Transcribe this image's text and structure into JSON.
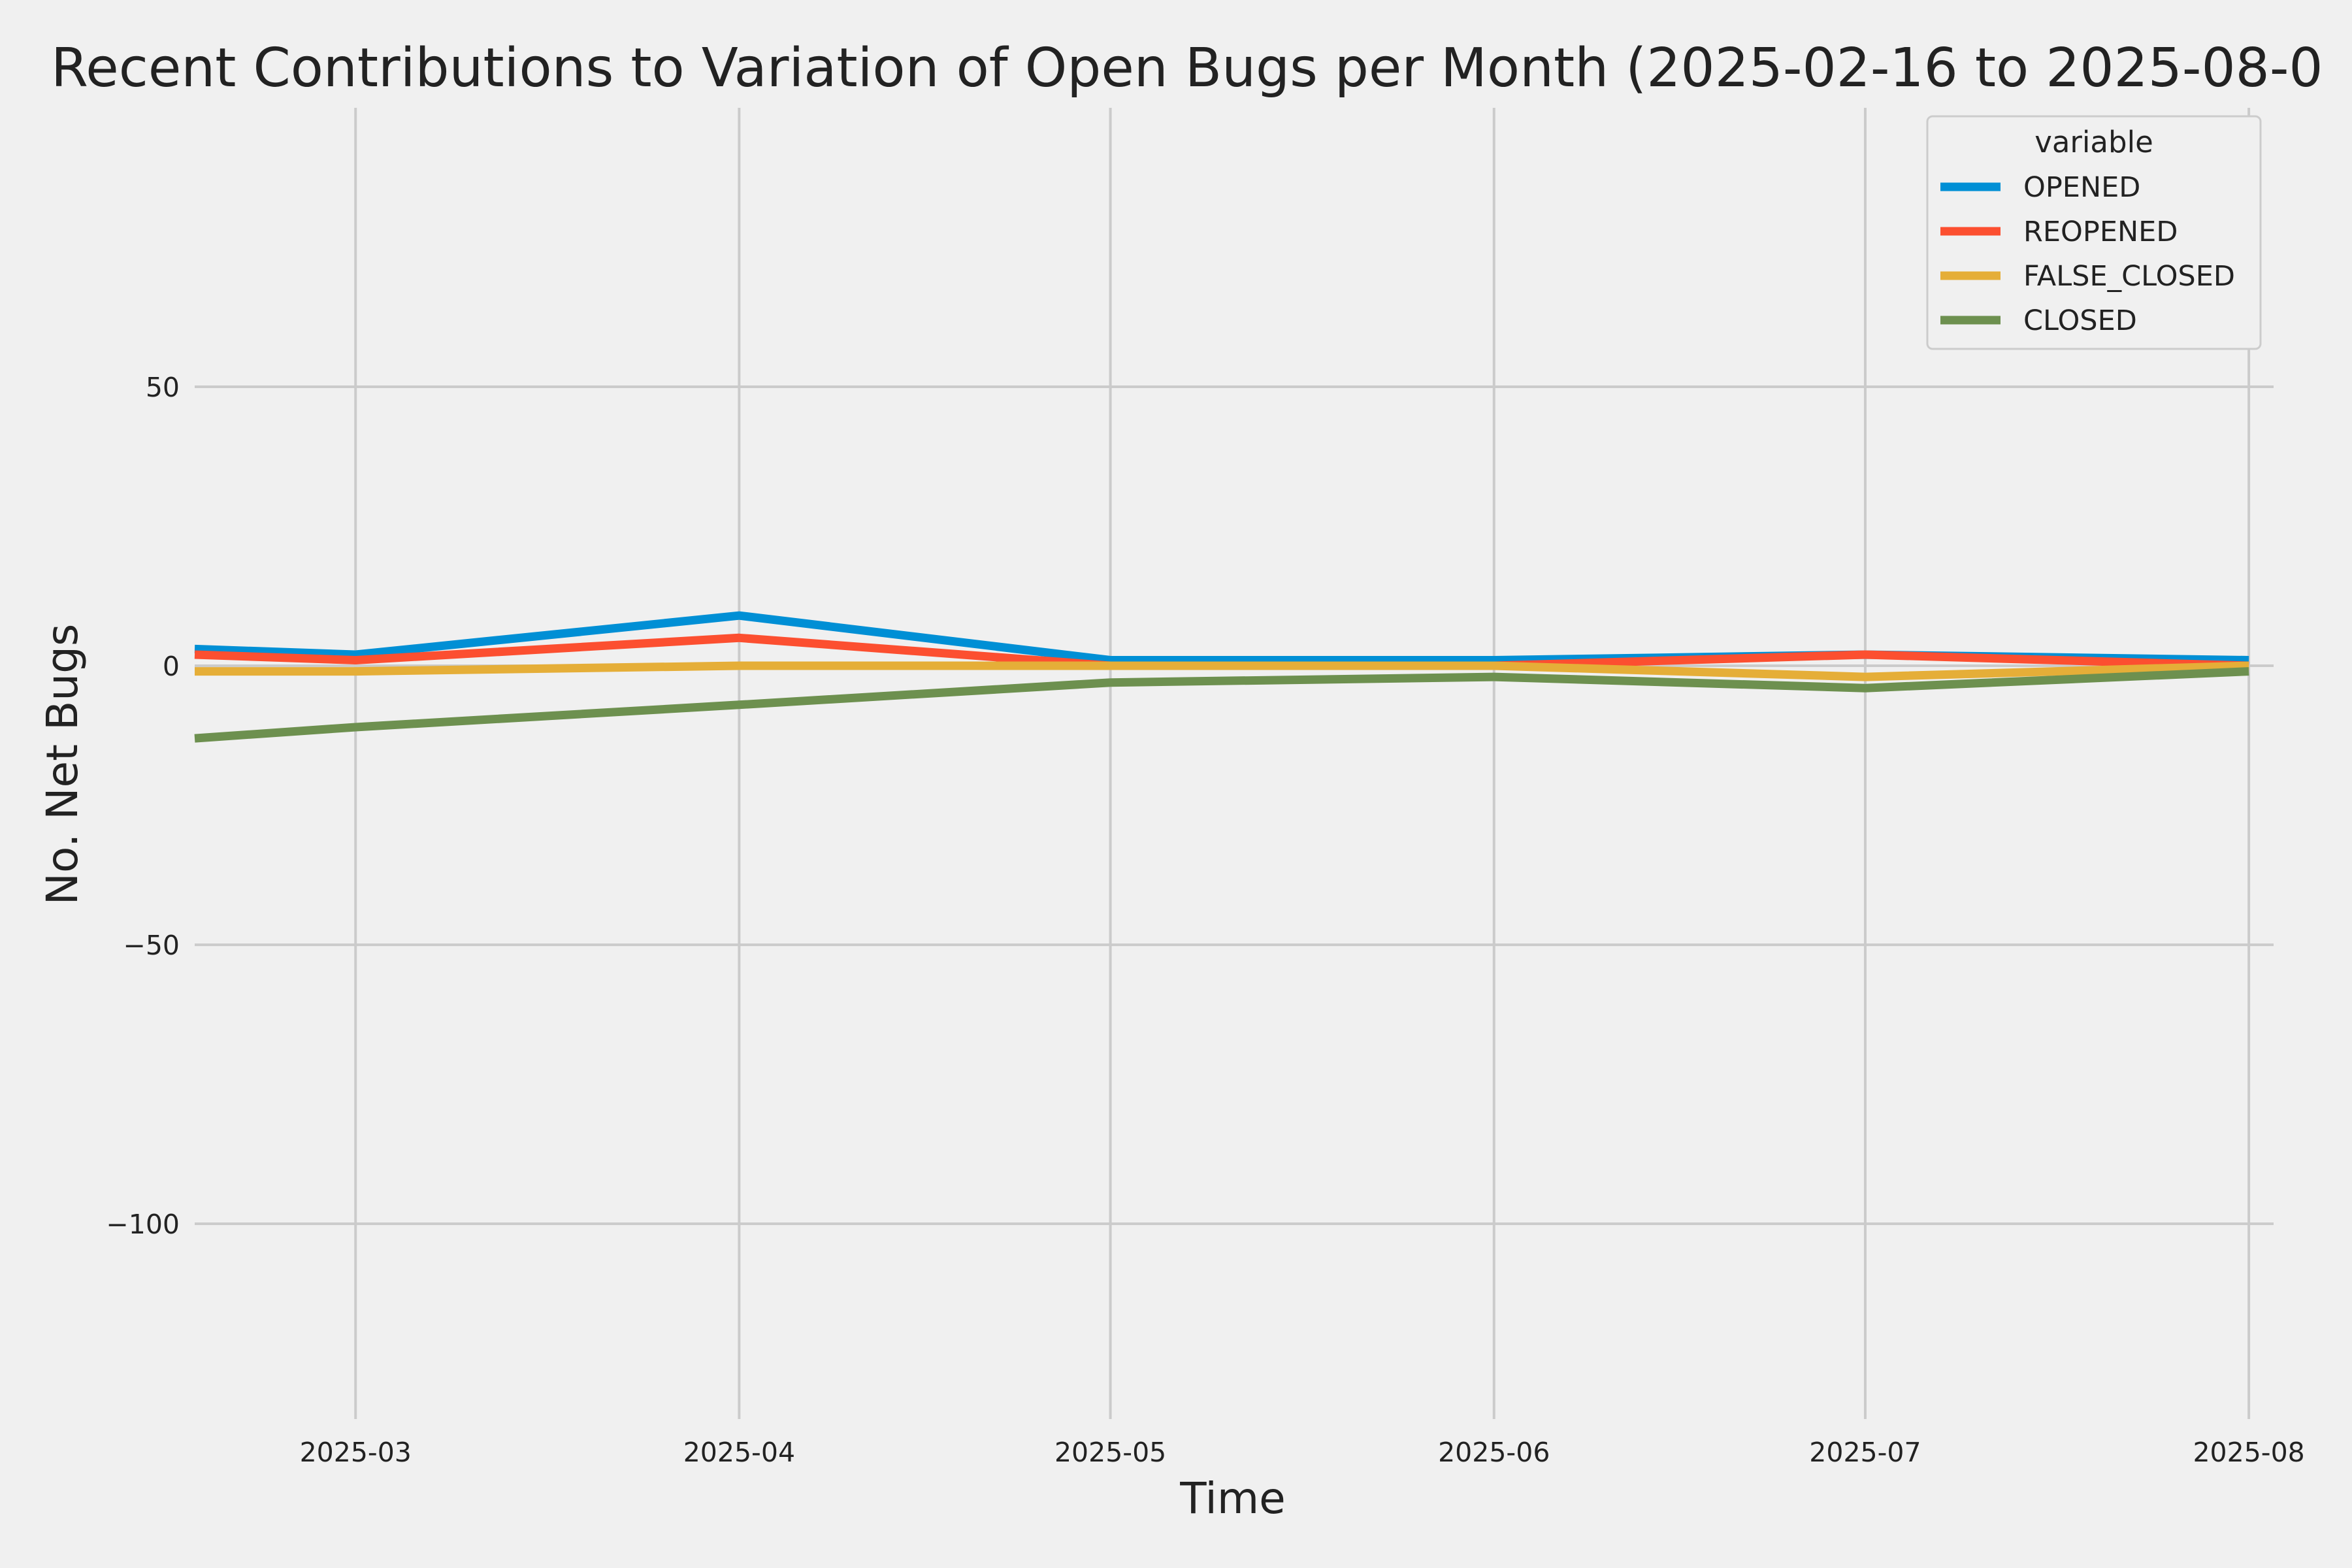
{
  "chart_data": {
    "type": "line",
    "title": "Recent Contributions to Variation of Open Bugs per Month (2025-02-16 to 2025-08-0",
    "xlabel": "Time",
    "ylabel": "No. Net Bugs",
    "x": [
      "2025-02-16",
      "2025-03-01",
      "2025-04-01",
      "2025-05-01",
      "2025-06-01",
      "2025-07-01",
      "2025-08-01"
    ],
    "xlim": [
      "2025-02-16",
      "2025-08-03"
    ],
    "ylim": [
      -135,
      100
    ],
    "x_ticks": [
      {
        "date": "2025-03-01",
        "label": "2025-03"
      },
      {
        "date": "2025-04-01",
        "label": "2025-04"
      },
      {
        "date": "2025-05-01",
        "label": "2025-05"
      },
      {
        "date": "2025-06-01",
        "label": "2025-06"
      },
      {
        "date": "2025-07-01",
        "label": "2025-07"
      },
      {
        "date": "2025-08-01",
        "label": "2025-08"
      }
    ],
    "y_ticks": [
      {
        "value": 50,
        "label": "50"
      },
      {
        "value": 0,
        "label": "0"
      },
      {
        "value": -50,
        "label": "−50"
      },
      {
        "value": -100,
        "label": "−100"
      }
    ],
    "grid": true,
    "legend": {
      "title": "variable",
      "placement": "top-right"
    },
    "series": [
      {
        "name": "OPENED",
        "color": "#008fd5",
        "values": [
          3,
          2,
          9,
          1,
          1,
          2,
          1
        ]
      },
      {
        "name": "REOPENED",
        "color": "#fc4f30",
        "values": [
          2,
          1,
          5,
          0,
          0,
          2,
          0
        ]
      },
      {
        "name": "FALSE_CLOSED",
        "color": "#e5ae38",
        "values": [
          -1,
          -1,
          0,
          0,
          0,
          -2,
          0
        ]
      },
      {
        "name": "CLOSED",
        "color": "#6d904f",
        "values": [
          -13,
          -11,
          -7,
          -3,
          -2,
          -4,
          -1
        ]
      }
    ]
  }
}
